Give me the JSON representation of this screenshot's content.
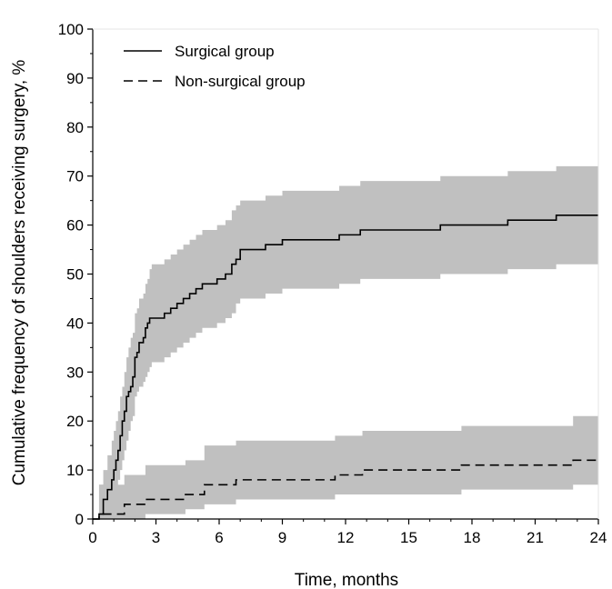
{
  "chart_data": {
    "type": "line",
    "title": "",
    "xlabel": "Time, months",
    "ylabel": "Cumulative frequency of shoulders receiving surgery, %",
    "xlim": [
      0,
      24
    ],
    "ylim": [
      0,
      100
    ],
    "xticks": [
      0,
      3,
      6,
      9,
      12,
      15,
      18,
      21,
      24
    ],
    "yticks": [
      0,
      10,
      20,
      30,
      40,
      50,
      60,
      70,
      80,
      90,
      100
    ],
    "grid": false,
    "legend_position": "top-left",
    "ci_color": "#c0c0c0",
    "series": [
      {
        "name": "Surgical group",
        "style": "solid",
        "x": [
          0,
          0.3,
          0.5,
          0.7,
          0.9,
          1.0,
          1.1,
          1.2,
          1.3,
          1.4,
          1.5,
          1.6,
          1.7,
          1.8,
          1.9,
          2.0,
          2.1,
          2.2,
          2.4,
          2.5,
          2.6,
          2.7,
          2.8,
          3.0,
          3.4,
          3.7,
          4.0,
          4.3,
          4.6,
          4.9,
          5.2,
          5.6,
          5.9,
          6.3,
          6.6,
          6.8,
          7.0,
          7.5,
          8.2,
          9.0,
          11.7,
          12.7,
          16.5,
          19.7,
          22.0,
          24.0
        ],
        "y": [
          0,
          1,
          4,
          6,
          8,
          10,
          12,
          14,
          17,
          20,
          22,
          25,
          26,
          27,
          29,
          33,
          34,
          36,
          37,
          39,
          40,
          41,
          41,
          41,
          42,
          43,
          44,
          45,
          46,
          47,
          48,
          48,
          49,
          50,
          52,
          53,
          55,
          55,
          56,
          57,
          58,
          59,
          60,
          61,
          62,
          62
        ],
        "ci_lower": [
          0,
          0,
          0,
          1,
          2,
          4,
          6,
          8,
          10,
          12,
          14,
          16,
          18,
          20,
          21,
          25,
          26,
          27,
          28,
          29,
          30,
          31,
          32,
          32,
          33,
          34,
          35,
          36,
          37,
          38,
          39,
          39,
          40,
          41,
          42,
          44,
          45,
          45,
          46,
          47,
          48,
          49,
          50,
          51,
          52,
          52
        ],
        "ci_upper": [
          0,
          7,
          10,
          13,
          16,
          18,
          20,
          22,
          25,
          27,
          30,
          33,
          35,
          37,
          38,
          42,
          43,
          45,
          46,
          48,
          49,
          51,
          52,
          52,
          53,
          54,
          55,
          56,
          57,
          58,
          59,
          59,
          60,
          61,
          63,
          64,
          65,
          65,
          66,
          67,
          68,
          69,
          70,
          71,
          72,
          72
        ]
      },
      {
        "name": "Non-surgical group",
        "style": "dashed",
        "x": [
          0,
          0.3,
          0.8,
          1.5,
          2.2,
          2.5,
          3.5,
          4.4,
          5.3,
          6.8,
          11.5,
          12.8,
          17.5,
          22.8,
          24.0
        ],
        "y": [
          0,
          1,
          1,
          3,
          3,
          4,
          4,
          5,
          7,
          8,
          9,
          10,
          11,
          12,
          12
        ],
        "ci_lower": [
          0,
          0,
          0,
          0,
          0,
          1,
          1,
          2,
          3,
          4,
          5,
          5,
          6,
          7,
          7
        ],
        "ci_upper": [
          0,
          7,
          7,
          9,
          9,
          11,
          11,
          12,
          15,
          16,
          17,
          18,
          19,
          21,
          21
        ]
      }
    ]
  }
}
